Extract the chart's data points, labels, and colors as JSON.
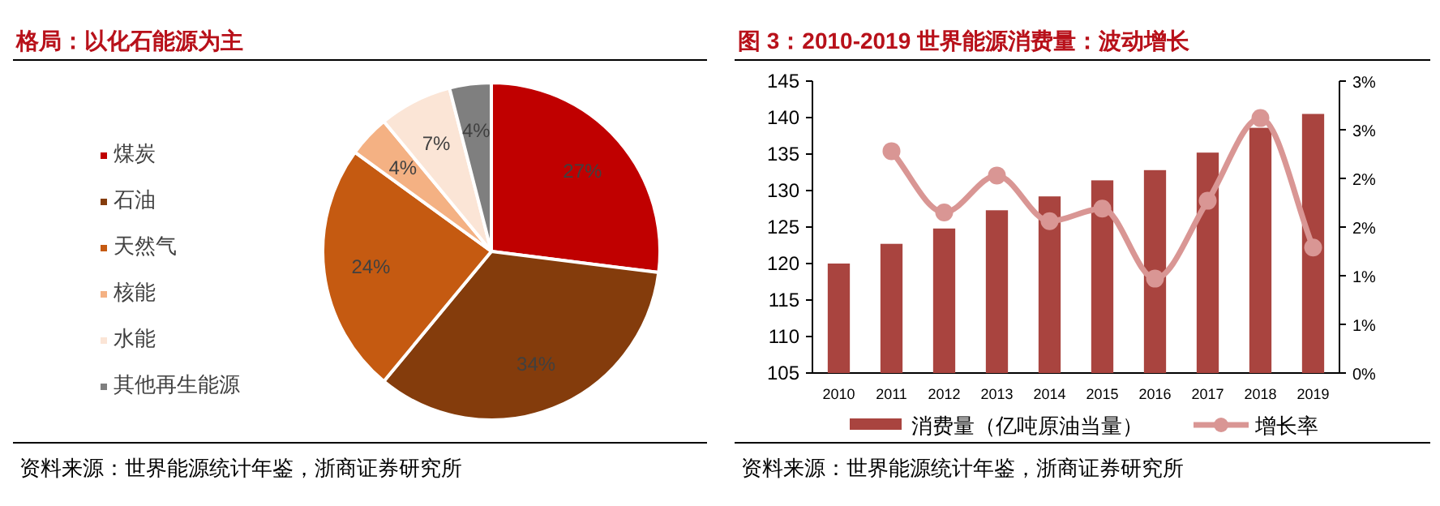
{
  "chart_data": [
    {
      "type": "pie",
      "title": "格局：以化石能源为主",
      "categories": [
        "煤炭",
        "石油",
        "天然气",
        "核能",
        "水能",
        "其他再生能源"
      ],
      "values": [
        27,
        34,
        24,
        4,
        7,
        4
      ],
      "colors": [
        "#c00000",
        "#843c0c",
        "#c55a11",
        "#f4b183",
        "#fbe5d6",
        "#7f7f7f"
      ],
      "value_labels": [
        "27%",
        "34%",
        "24%",
        "4%",
        "7%",
        "4%"
      ],
      "legend": "left",
      "annotations": [
        "资料来源：世界能源统计年鉴，浙商证券研究所"
      ]
    },
    {
      "type": "bar",
      "title": "图 3：2010-2019 世界能源消费量：波动增长",
      "categories": [
        "2010",
        "2011",
        "2012",
        "2013",
        "2014",
        "2015",
        "2016",
        "2017",
        "2018",
        "2019"
      ],
      "series": [
        {
          "name": "消费量（亿吨原油当量）",
          "color": "#a9443f",
          "values": [
            120.0,
            122.7,
            124.8,
            127.3,
            129.2,
            131.4,
            132.8,
            135.2,
            138.6,
            140.5
          ]
        },
        {
          "name": "增长率",
          "type": "line",
          "axis": "y2",
          "color": "#d99694",
          "marker": "circle",
          "values": [
            null,
            2.28,
            1.65,
            2.03,
            1.56,
            1.69,
            0.97,
            1.77,
            2.62,
            1.29
          ]
        }
      ],
      "ylim": [
        105,
        145
      ],
      "yticks": [
        105,
        110,
        115,
        120,
        125,
        130,
        135,
        140,
        145
      ],
      "y2lim": [
        0,
        3
      ],
      "y2ticks": [
        {
          "value": 0,
          "label": "0%"
        },
        {
          "value": 0.5,
          "label": "1%"
        },
        {
          "value": 1,
          "label": "1%"
        },
        {
          "value": 1.5,
          "label": "2%"
        },
        {
          "value": 2,
          "label": "2%"
        },
        {
          "value": 2.5,
          "label": "3%"
        },
        {
          "value": 3,
          "label": "3%"
        }
      ],
      "legend": "bottom",
      "annotations": [
        "资料来源：世界能源统计年鉴，浙商证券研究所"
      ]
    }
  ]
}
